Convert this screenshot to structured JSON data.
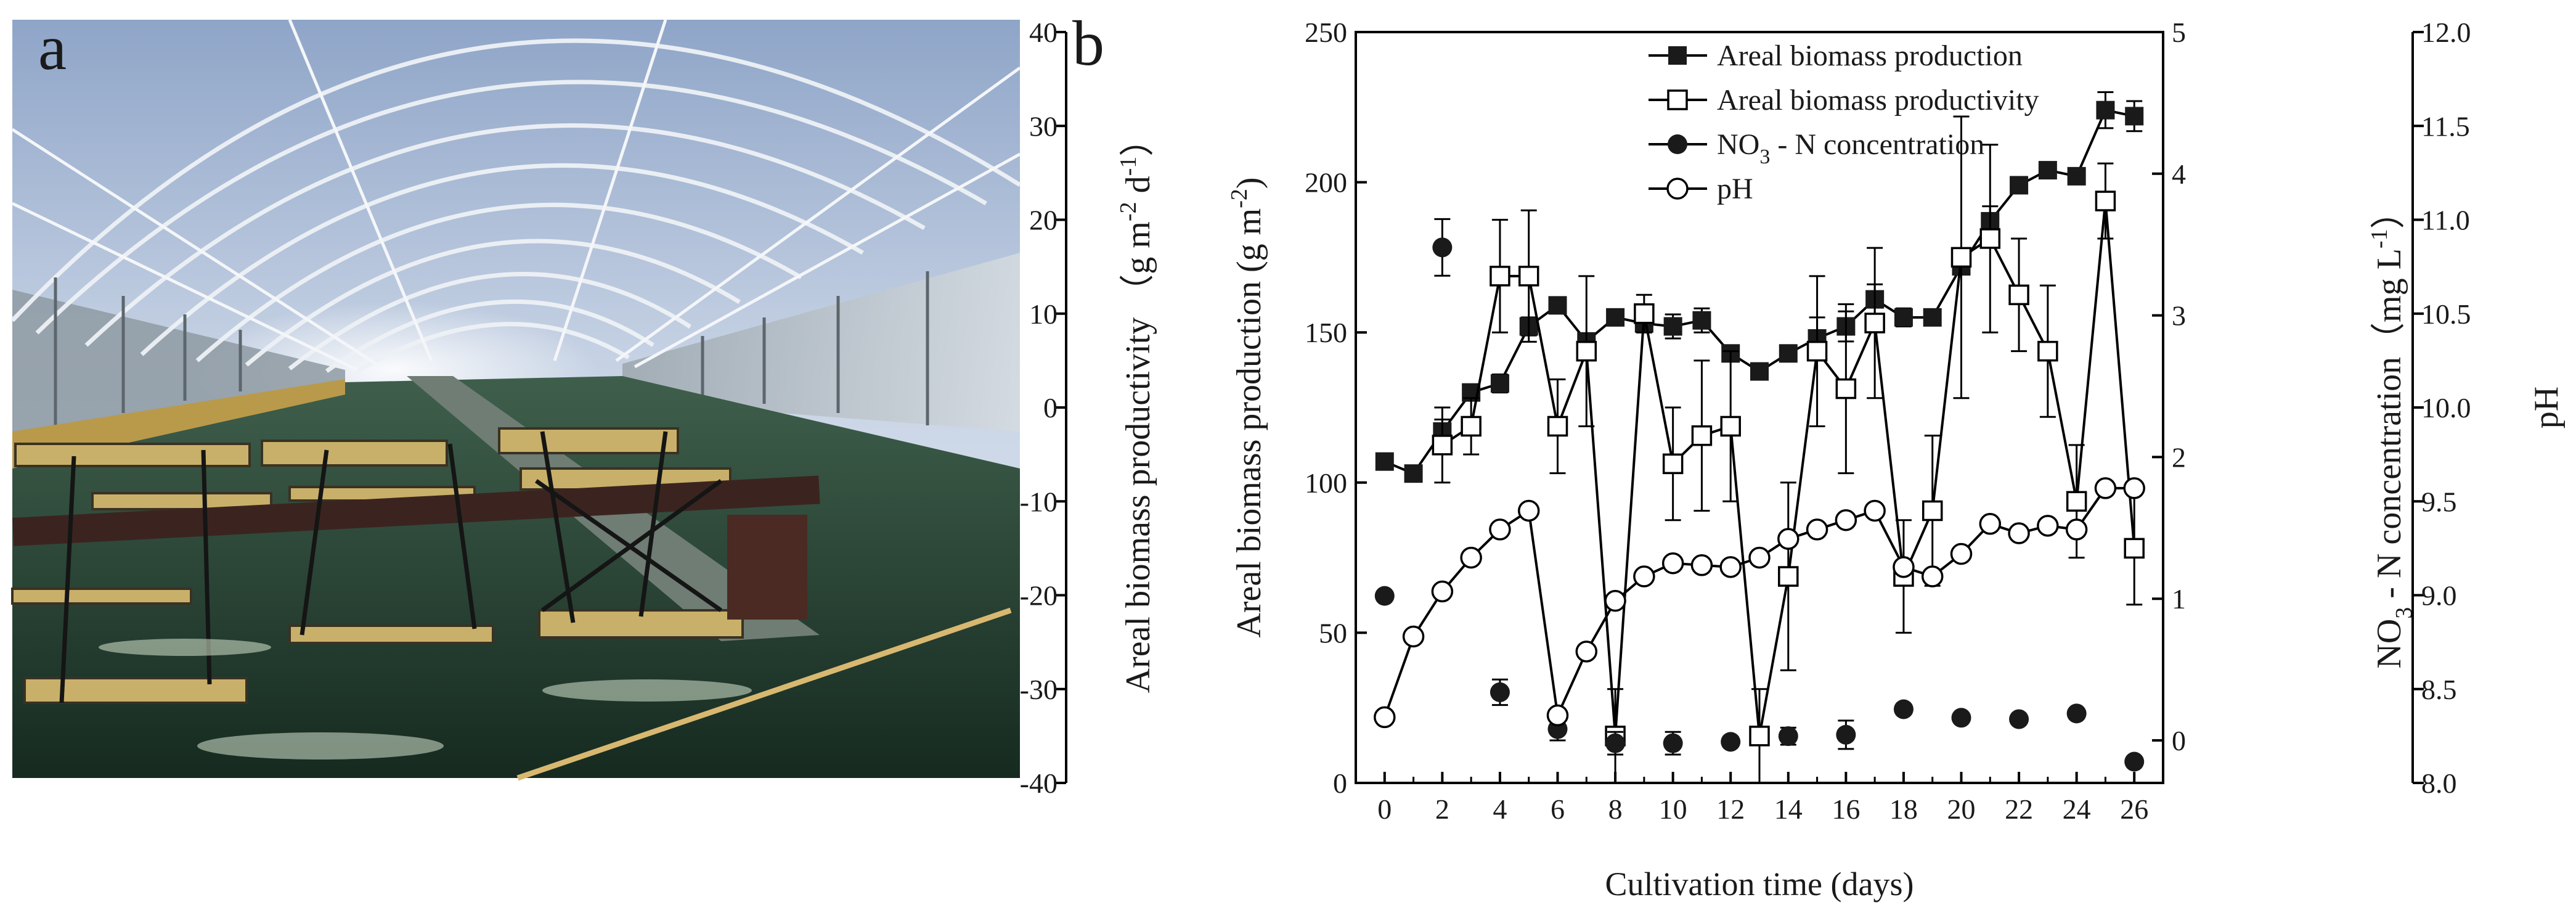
{
  "panel_a": {
    "label": "a"
  },
  "chart_data": {
    "type": "line",
    "panel_label": "b",
    "xlabel": "Cultivation time (days)",
    "xlim": [
      -1,
      27
    ],
    "xticks": [
      0,
      2,
      4,
      6,
      8,
      10,
      12,
      14,
      16,
      18,
      20,
      22,
      24,
      26
    ],
    "axes": {
      "production": {
        "label": "Areal biomass production (g m-2)",
        "lim": [
          0,
          250
        ],
        "ticks": [
          0,
          50,
          100,
          150,
          200,
          250
        ]
      },
      "productivity": {
        "label": "Areal biomass productivity (g m-2 d-1)",
        "lim": [
          -40,
          40
        ],
        "ticks": [
          -40,
          -30,
          -20,
          -10,
          0,
          10,
          20,
          30,
          40
        ]
      },
      "nitrate": {
        "label": "NO3 - N concentration (mg L-1)",
        "lim": [
          -0.3,
          5
        ],
        "ticks": [
          0,
          1,
          2,
          3,
          4,
          5
        ]
      },
      "ph": {
        "label": "pH",
        "lim": [
          8.0,
          12.0
        ],
        "ticks": [
          "8.0",
          "8.5",
          "9.0",
          "9.5",
          "10.0",
          "10.5",
          "11.0",
          "11.5",
          "12.0"
        ]
      }
    },
    "legend_labels": [
      "Areal biomass production",
      "Areal biomass productivity",
      "NO3 - N concentration",
      "pH"
    ],
    "series": [
      {
        "name": "Areal biomass production",
        "axis": "production",
        "marker": "filled-square",
        "line": true,
        "x": [
          0,
          1,
          2,
          3,
          4,
          5,
          6,
          7,
          8,
          9,
          10,
          11,
          12,
          13,
          14,
          15,
          16,
          17,
          18,
          19,
          20,
          21,
          22,
          23,
          24,
          25,
          26
        ],
        "y": [
          107,
          103,
          117,
          130,
          133,
          152,
          159,
          147,
          155,
          153,
          152,
          154,
          143,
          137,
          143,
          148,
          152,
          161,
          155,
          155,
          172,
          187,
          199,
          204,
          202,
          224,
          222
        ],
        "err": [
          0,
          0,
          4,
          0,
          3,
          3,
          0,
          0,
          0,
          3,
          4,
          4,
          2,
          0,
          0,
          7,
          5,
          5,
          3,
          0,
          0,
          5,
          0,
          0,
          0,
          6,
          5
        ]
      },
      {
        "name": "Areal biomass productivity",
        "axis": "productivity",
        "marker": "open-square",
        "line": true,
        "x": [
          2,
          3,
          4,
          5,
          6,
          7,
          8,
          9,
          10,
          11,
          12,
          13,
          14,
          15,
          16,
          17,
          18,
          19,
          20,
          21,
          22,
          23,
          24,
          25,
          26
        ],
        "y": [
          -4,
          -2,
          14,
          14,
          -2,
          6,
          -35,
          10,
          -6,
          -3,
          -2,
          -35,
          -18,
          6,
          2,
          9,
          -18,
          -11,
          16,
          18,
          12,
          6,
          -10,
          22,
          -15
        ],
        "err": [
          4,
          3,
          6,
          7,
          5,
          8,
          5,
          2,
          6,
          8,
          8,
          5,
          10,
          8,
          9,
          8,
          6,
          8,
          15,
          10,
          6,
          7,
          6,
          4,
          6
        ]
      },
      {
        "name": "NO3 - N concentration",
        "axis": "nitrate",
        "marker": "filled-circle",
        "line": false,
        "x": [
          0,
          2,
          4,
          6,
          8,
          10,
          12,
          14,
          16,
          18,
          20,
          22,
          24,
          26
        ],
        "y": [
          1.02,
          3.48,
          0.34,
          0.08,
          -0.02,
          -0.02,
          -0.01,
          0.03,
          0.04,
          0.22,
          0.16,
          0.15,
          0.19,
          -0.15
        ],
        "err": [
          0,
          0.2,
          0.09,
          0.08,
          0.08,
          0.08,
          0,
          0.06,
          0.1,
          0,
          0,
          0,
          0,
          0
        ]
      },
      {
        "name": "pH",
        "axis": "ph",
        "marker": "open-circle",
        "line": true,
        "x": [
          0,
          1,
          2,
          3,
          4,
          5,
          6,
          7,
          8,
          9,
          10,
          11,
          12,
          13,
          14,
          15,
          16,
          17,
          18,
          19,
          20,
          21,
          22,
          23,
          24,
          25,
          26
        ],
        "y": [
          8.35,
          8.78,
          9.02,
          9.2,
          9.35,
          9.45,
          8.36,
          8.7,
          8.97,
          9.1,
          9.17,
          9.16,
          9.15,
          9.2,
          9.3,
          9.35,
          9.4,
          9.45,
          9.15,
          9.1,
          9.22,
          9.38,
          9.33,
          9.37,
          9.35,
          9.57,
          9.57
        ],
        "err": []
      }
    ]
  }
}
